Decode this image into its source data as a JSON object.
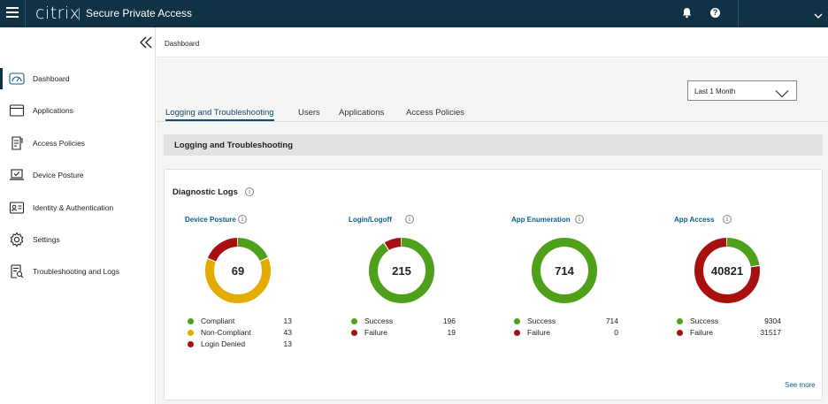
{
  "header": {
    "logo": "citrix",
    "product": "Secure Private Access",
    "icons": [
      "menu-icon",
      "bell-icon",
      "help-icon",
      "chevron-down-icon"
    ]
  },
  "sidebar": {
    "items": [
      {
        "label": "Dashboard",
        "icon": "speedometer-icon",
        "active": true
      },
      {
        "label": "Applications",
        "icon": "browser-window-icon",
        "active": false
      },
      {
        "label": "Access Policies",
        "icon": "policy-document-icon",
        "active": false
      },
      {
        "label": "Device Posture",
        "icon": "laptop-check-icon",
        "active": false
      },
      {
        "label": "Identity & Authentication",
        "icon": "id-card-icon",
        "active": false
      },
      {
        "label": "Settings",
        "icon": "gear-icon",
        "active": false
      },
      {
        "label": "Troubleshooting and Logs",
        "icon": "log-search-icon",
        "active": false
      }
    ]
  },
  "breadcrumb": "Dashboard",
  "time_range": {
    "selected": "Last 1 Month"
  },
  "tabs": [
    {
      "label": "Logging and Troubleshooting",
      "active": true
    },
    {
      "label": "Users",
      "active": false
    },
    {
      "label": "Applications",
      "active": false
    },
    {
      "label": "Access Policies",
      "active": false
    }
  ],
  "section_title": "Logging and Troubleshooting",
  "card": {
    "title": "Diagnostic Logs",
    "see_more": "See more"
  },
  "colors": {
    "green": "#4e9f1a",
    "yellow": "#e5ac00",
    "red": "#a80f0f",
    "header": "#0f3245",
    "link": "#0f5f86"
  },
  "chart_data": [
    {
      "type": "pie",
      "title": "Device Posture",
      "total": "69",
      "series": [
        {
          "name": "Compliant",
          "value": 13,
          "color": "#4e9f1a"
        },
        {
          "name": "Non-Compliant",
          "value": 43,
          "color": "#e5ac00"
        },
        {
          "name": "Login Denied",
          "value": 13,
          "color": "#a80f0f"
        }
      ]
    },
    {
      "type": "pie",
      "title": "Login/Logoff",
      "total": "215",
      "series": [
        {
          "name": "Success",
          "value": 196,
          "color": "#4e9f1a"
        },
        {
          "name": "Failure",
          "value": 19,
          "color": "#a80f0f"
        }
      ]
    },
    {
      "type": "pie",
      "title": "App Enumeration",
      "total": "714",
      "series": [
        {
          "name": "Success",
          "value": 714,
          "color": "#4e9f1a"
        },
        {
          "name": "Failure",
          "value": 0,
          "color": "#a80f0f"
        }
      ]
    },
    {
      "type": "pie",
      "title": "App Access",
      "total": "40821",
      "series": [
        {
          "name": "Success",
          "value": 9304,
          "color": "#4e9f1a"
        },
        {
          "name": "Failure",
          "value": 31517,
          "color": "#a80f0f"
        }
      ]
    }
  ]
}
